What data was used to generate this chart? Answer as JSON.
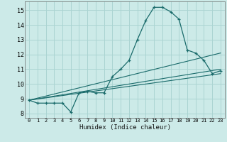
{
  "xlabel": "Humidex (Indice chaleur)",
  "background_color": "#cceae8",
  "grid_color": "#aad4d2",
  "line_color": "#1a6b6b",
  "xlim": [
    -0.5,
    23.5
  ],
  "ylim": [
    7.7,
    15.6
  ],
  "xticks": [
    0,
    1,
    2,
    3,
    4,
    5,
    6,
    7,
    8,
    9,
    10,
    11,
    12,
    13,
    14,
    15,
    16,
    17,
    18,
    19,
    20,
    21,
    22,
    23
  ],
  "yticks": [
    8,
    9,
    10,
    11,
    12,
    13,
    14,
    15
  ],
  "series1_x": [
    0,
    1,
    2,
    3,
    4,
    5,
    6,
    7,
    8,
    9,
    10,
    11,
    12,
    13,
    14,
    15,
    16,
    17,
    18,
    19,
    20,
    21,
    22,
    23
  ],
  "series1_y": [
    8.9,
    8.7,
    8.7,
    8.7,
    8.7,
    8.1,
    9.4,
    9.5,
    9.4,
    9.4,
    10.5,
    11.0,
    11.6,
    13.0,
    14.3,
    15.2,
    15.2,
    14.9,
    14.4,
    12.3,
    12.1,
    11.6,
    10.7,
    10.9
  ],
  "series2_x": [
    0,
    23
  ],
  "series2_y": [
    8.9,
    10.7
  ],
  "series3_x": [
    0,
    23
  ],
  "series3_y": [
    8.9,
    11.0
  ],
  "series4_x": [
    0,
    23
  ],
  "series4_y": [
    8.9,
    12.1
  ]
}
